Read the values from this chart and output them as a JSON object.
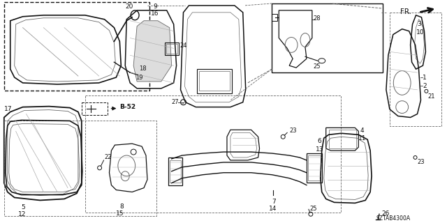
{
  "bg_color": "#ffffff",
  "diagram_id": "SZTAB4300A",
  "fig_width": 6.4,
  "fig_height": 3.2,
  "dpi": 100
}
